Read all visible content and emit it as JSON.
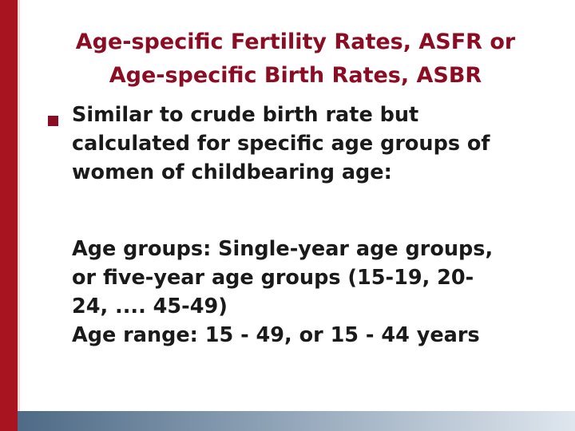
{
  "slide": {
    "title": {
      "line1": "Age-specific Fertility Rates, ASFR  or",
      "line2": "Age-specific Birth Rates, ASBR"
    },
    "bullet": {
      "lines": [
        "Similar to crude birth rate but",
        "calculated for specific age groups of",
        "women of childbearing age:"
      ]
    },
    "subtext": {
      "lines": [
        "Age groups:  Single-year age groups,",
        "or five-year age groups (15-19, 20-",
        "24, .... 45-49)",
        "Age range: 15 - 49, or 15 - 44 years"
      ]
    }
  },
  "colors": {
    "accent": "#a8141f",
    "title": "#8b0d24",
    "text": "#1a1a1a"
  }
}
